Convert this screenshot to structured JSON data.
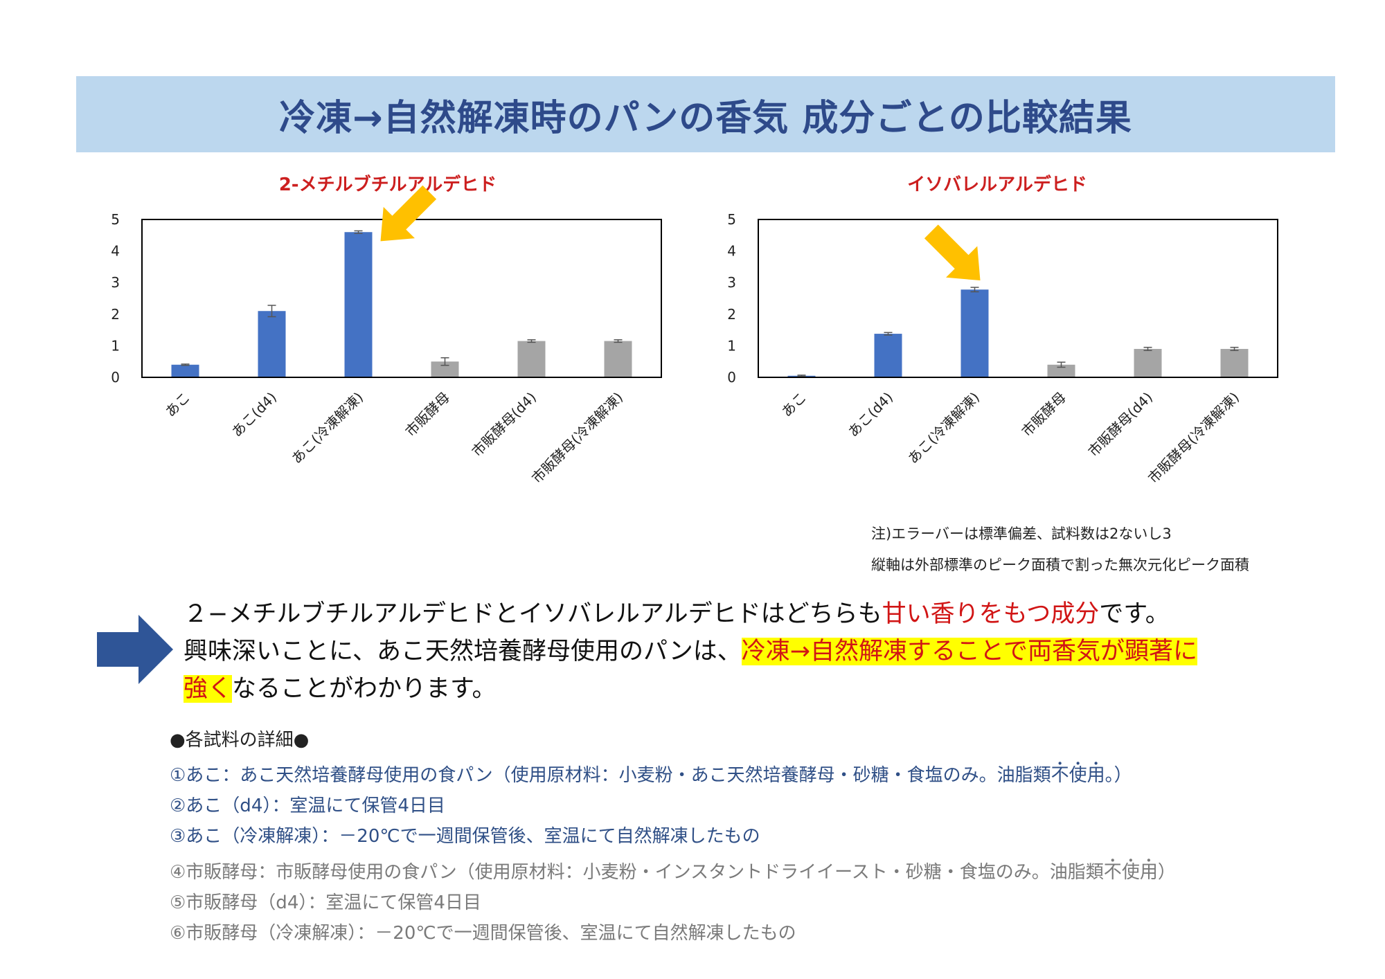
{
  "page_title": "冷凍→自然解凍時のパンの香気 成分ごとの比較結果",
  "chart_data": [
    {
      "type": "bar",
      "title": "2-メチルブチルアルデヒド",
      "categories": [
        "あこ",
        "あこ(d4)",
        "あこ(冷凍解凍)",
        "市販酵母",
        "市販酵母(d4)",
        "市販酵母(冷凍解凍)"
      ],
      "values": [
        0.4,
        2.1,
        4.6,
        0.5,
        1.15,
        1.15
      ],
      "errors": [
        0.02,
        0.18,
        0.04,
        0.12,
        0.04,
        0.04
      ],
      "colors": [
        "#4472c4",
        "#4472c4",
        "#4472c4",
        "#a5a5a5",
        "#a5a5a5",
        "#a5a5a5"
      ],
      "yticks": [
        0,
        1,
        2,
        3,
        4,
        5
      ],
      "ylim": [
        0,
        5
      ],
      "highlight_index": 2
    },
    {
      "type": "bar",
      "title": "イソバレルアルデヒド",
      "categories": [
        "あこ",
        "あこ(d4)",
        "あこ(冷凍解凍)",
        "市販酵母",
        "市販酵母(d4)",
        "市販酵母(冷凍解凍)"
      ],
      "values": [
        0.05,
        1.38,
        2.78,
        0.4,
        0.9,
        0.9
      ],
      "errors": [
        0.02,
        0.04,
        0.07,
        0.08,
        0.05,
        0.05
      ],
      "colors": [
        "#4472c4",
        "#4472c4",
        "#4472c4",
        "#a5a5a5",
        "#a5a5a5",
        "#a5a5a5"
      ],
      "yticks": [
        0,
        1,
        2,
        3,
        4,
        5
      ],
      "ylim": [
        0,
        5
      ],
      "highlight_index": 2
    }
  ],
  "notes": {
    "line1": "注)エラーバーは標準偏差、試料数は2ないし3",
    "line2": "縦軸は外部標準のピーク面積で割った無次元化ピーク面積"
  },
  "summary": {
    "l1_a": "２−メチルブチルアルデヒドとイソバレルアルデヒドはどちらも",
    "l1_red": "甘い香りをもつ成分",
    "l1_b": "です。",
    "l2_a": "興味深いことに、あこ天然培養酵母使用のパンは、",
    "l2_hl": "冷凍→自然解凍することで両香気が顕著に",
    "l3_hl": "強く",
    "l3_b": "なることがわかります。"
  },
  "details": {
    "heading": "●各試料の詳細●",
    "item1_a": "①あこ：あこ天然培養酵母使用の食パン（使用原材料：小麦粉・あこ天然培養酵母・砂糖・食塩のみ。油脂類",
    "item1_d1": "不",
    "item1_d2": "使",
    "item1_d3": "用",
    "item1_b": "。）",
    "item2": "②あこ（d4）：室温にて保管4日目",
    "item3": "③あこ（冷凍解凍）：－20℃で一週間保管後、室温にて自然解凍したもの",
    "item4_a": "④市販酵母：市販酵母使用の食パン（使用原材料：小麦粉・インスタントドライイースト・砂糖・食塩のみ。油脂類",
    "item4_d1": "不",
    "item4_d2": "使",
    "item4_d3": "用",
    "item4_b": "）",
    "item5": "⑤市販酵母（d4）：室温にて保管4日目",
    "item6": "⑥市販酵母（冷凍解凍）：－20℃で一週間保管後、室温にて自然解凍したもの"
  },
  "colors": {
    "title_bg": "#bcd7ee",
    "title_text": "#2e4a8a",
    "chart_title": "#cc1f1f",
    "blue_bar": "#4472c4",
    "gray_bar": "#a5a5a5",
    "callout_arrow": "#ffc000",
    "big_arrow": "#2f5597",
    "highlight": "#ffff00",
    "red_text": "#d11515"
  }
}
